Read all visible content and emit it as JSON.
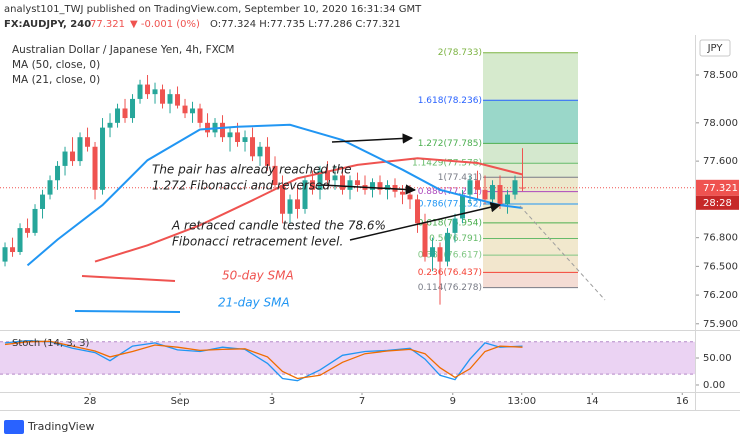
{
  "header": {
    "publisher": "analyst101_TWJ published on TradingView.com, September 10, 2020 16:31:34 GMT",
    "symbol": "FX:AUDJPY, 240",
    "last": "77.321",
    "change": "▼ -0.001 (0%)",
    "ohlc": "O:77.324 H:77.735 L:77.286 C:77.321"
  },
  "chart_data": [
    {
      "type": "candlestick",
      "title": "Australian Dollar / Japanese Yen, 4h, FXCM",
      "currency": "JPY",
      "up_color": "#26a69a",
      "down_color": "#ef5350",
      "open": [
        76.55,
        76.7,
        76.65,
        76.9,
        76.85,
        77.1,
        77.25,
        77.4,
        77.55,
        77.7,
        77.6,
        77.85,
        77.75,
        77.3,
        77.95,
        78.0,
        78.15,
        78.05,
        78.25,
        78.4,
        78.3,
        78.35,
        78.2,
        78.3,
        78.18,
        78.1,
        78.15,
        78.0,
        77.9,
        78.0,
        77.85,
        77.9,
        77.8,
        77.85,
        77.65,
        77.75,
        77.55,
        77.35,
        77.05,
        77.2,
        77.1,
        77.4,
        77.3,
        77.5,
        77.4,
        77.45,
        77.3,
        77.4,
        77.35,
        77.3,
        77.38,
        77.3,
        77.35,
        77.28,
        77.25,
        77.2,
        76.95,
        76.6,
        76.7,
        76.55,
        76.85,
        77.0,
        77.25,
        77.4,
        77.3,
        77.2,
        77.35,
        77.15,
        77.25,
        77.324
      ],
      "high": [
        76.75,
        76.8,
        76.95,
        77.0,
        77.15,
        77.3,
        77.45,
        77.6,
        77.75,
        77.85,
        77.9,
        77.95,
        77.8,
        78.05,
        78.1,
        78.2,
        78.25,
        78.3,
        78.45,
        78.5,
        78.42,
        78.4,
        78.35,
        78.38,
        78.25,
        78.22,
        78.2,
        78.1,
        78.05,
        78.08,
        77.95,
        78.0,
        77.92,
        77.95,
        77.8,
        77.85,
        77.65,
        77.45,
        77.25,
        77.35,
        77.45,
        77.5,
        77.55,
        77.6,
        77.55,
        77.5,
        77.45,
        77.48,
        77.45,
        77.42,
        77.45,
        77.4,
        77.42,
        77.35,
        77.35,
        77.25,
        77.05,
        76.8,
        76.75,
        76.9,
        77.05,
        77.3,
        77.45,
        77.5,
        77.45,
        77.4,
        77.45,
        77.3,
        77.45,
        77.735
      ],
      "low": [
        76.5,
        76.6,
        76.62,
        76.8,
        76.82,
        77.0,
        77.2,
        77.3,
        77.45,
        77.55,
        77.55,
        77.7,
        77.2,
        77.25,
        77.85,
        77.95,
        78.0,
        78.0,
        78.2,
        78.25,
        78.2,
        78.15,
        78.1,
        78.15,
        78.05,
        78.0,
        77.95,
        77.85,
        77.85,
        77.8,
        77.7,
        77.75,
        77.7,
        77.6,
        77.55,
        77.5,
        77.3,
        76.95,
        76.95,
        77.0,
        77.05,
        77.25,
        77.2,
        77.35,
        77.3,
        77.25,
        77.2,
        77.28,
        77.25,
        77.22,
        77.25,
        77.2,
        77.22,
        77.15,
        77.1,
        76.85,
        76.55,
        76.45,
        76.1,
        76.5,
        76.75,
        76.95,
        77.15,
        77.2,
        77.15,
        77.1,
        77.1,
        77.05,
        77.2,
        77.286
      ],
      "close": [
        76.7,
        76.65,
        76.9,
        76.85,
        77.1,
        77.25,
        77.4,
        77.55,
        77.7,
        77.6,
        77.85,
        77.75,
        77.3,
        77.95,
        78.0,
        78.15,
        78.05,
        78.25,
        78.4,
        78.3,
        78.35,
        78.2,
        78.3,
        78.18,
        78.1,
        78.15,
        78.0,
        77.9,
        78.0,
        77.85,
        77.9,
        77.8,
        77.85,
        77.65,
        77.75,
        77.55,
        77.35,
        77.05,
        77.2,
        77.1,
        77.4,
        77.3,
        77.5,
        77.4,
        77.45,
        77.3,
        77.4,
        77.35,
        77.3,
        77.38,
        77.3,
        77.35,
        77.28,
        77.25,
        77.2,
        76.95,
        76.6,
        76.7,
        76.55,
        76.85,
        77.0,
        77.25,
        77.4,
        77.3,
        77.2,
        77.35,
        77.15,
        77.25,
        77.4,
        77.321
      ],
      "series": [
        {
          "name": "MA (50, close, 0)",
          "color": "#ef5350",
          "x": [
            12,
            19,
            26,
            33,
            39,
            47,
            55,
            63,
            69
          ],
          "values": [
            76.55,
            76.72,
            76.93,
            77.19,
            77.42,
            77.56,
            77.63,
            77.58,
            77.46
          ]
        },
        {
          "name": "MA (21, close, 0)",
          "color": "#2196f3",
          "x": [
            3,
            7,
            13,
            19,
            26,
            31,
            38,
            45,
            53,
            58,
            66,
            69
          ],
          "values": [
            76.51,
            76.78,
            77.14,
            77.61,
            77.93,
            77.96,
            77.98,
            77.82,
            77.51,
            77.3,
            77.14,
            77.11
          ]
        }
      ],
      "xlim": [
        -0.67,
        92
      ],
      "xticks": [
        {
          "value": 11.33,
          "label": "28"
        },
        {
          "value": 23.33,
          "label": "Sep"
        },
        {
          "value": 35.6,
          "label": "3"
        },
        {
          "value": 47.6,
          "label": "7"
        },
        {
          "value": 59.7,
          "label": "9"
        },
        {
          "value": 68.9,
          "label": "13:00"
        },
        {
          "value": 78.3,
          "label": "14"
        },
        {
          "value": 90.3,
          "label": "16"
        }
      ],
      "ylim": [
        75.835,
        78.918
      ],
      "yticks": [
        {
          "value": 78.5,
          "label": "78.500"
        },
        {
          "value": 78.0,
          "label": "78.000"
        },
        {
          "value": 77.6,
          "label": "77.600"
        },
        {
          "value": 76.8,
          "label": "76.800"
        },
        {
          "value": 76.5,
          "label": "76.500"
        },
        {
          "value": 76.2,
          "label": "76.200"
        },
        {
          "value": 75.9,
          "label": "75.900"
        }
      ],
      "grid": false,
      "last_price": {
        "value": 77.321,
        "label": "77.321"
      },
      "countdown": "28:28",
      "fib_levels": [
        {
          "label": "2(78.733)",
          "price": 78.733,
          "color": "#7cb342",
          "fill": "#d2e8c8"
        },
        {
          "label": "1.618(78.236)",
          "price": 78.236,
          "color": "#2962ff",
          "fill": "#8fd3c3"
        },
        {
          "label": "1.272(77.785)",
          "price": 77.785,
          "color": "#4caf50",
          "fill": "#cfe6c9"
        },
        {
          "label": "1.1429(77.578)",
          "price": 77.578,
          "color": "#66bb6a",
          "fill": "#dde9cc"
        },
        {
          "label": "1(77.431)",
          "price": 77.431,
          "color": "#787b86",
          "fill": "#ebe6c6"
        },
        {
          "label": "0.886(77.281)",
          "price": 77.281,
          "color": "#ab47bc",
          "fill": "#ebe6c6"
        },
        {
          "label": "0.786(77.152)",
          "price": 77.152,
          "color": "#2196f3",
          "fill": "#efe8c8"
        },
        {
          "label": "0.618(76.954)",
          "price": 76.954,
          "color": "#4caf50",
          "fill": "#efe8c8"
        },
        {
          "label": "0.5(76.791)",
          "price": 76.791,
          "color": "#66bb6a",
          "fill": "#efe6c8"
        },
        {
          "label": "0.382(76.617)",
          "price": 76.617,
          "color": "#81c784",
          "fill": "#f1e3c8"
        },
        {
          "label": "0.236(76.437)",
          "price": 76.437,
          "color": "#f44336",
          "fill": "#f3d8cf"
        },
        {
          "label": "0.114(76.278)",
          "price": 76.278,
          "color": "#787b86"
        }
      ],
      "annotations": [
        {
          "lines": [
            "The pair has already reached the",
            "1.272 Fibonacci and reversed"
          ]
        },
        {
          "lines": [
            "A retraced candle tested the 78.6%",
            "Fibonacci retracement level."
          ]
        },
        {
          "lines": [
            "50-day SMA"
          ]
        },
        {
          "lines": [
            "21-day SMA"
          ]
        }
      ]
    },
    {
      "type": "line",
      "title": "Stoch (14, 3, 3)",
      "series": [
        {
          "name": "%K",
          "color": "#2196f3",
          "x": [
            0,
            3,
            6,
            9,
            12,
            14,
            17,
            20,
            23,
            26,
            29,
            32,
            35,
            37,
            39,
            42,
            45,
            48,
            51,
            54,
            56,
            58,
            60,
            62,
            64,
            66,
            69
          ],
          "values": [
            78,
            82,
            80,
            68,
            60,
            45,
            72,
            78,
            65,
            62,
            70,
            66,
            40,
            12,
            8,
            28,
            55,
            62,
            64,
            68,
            48,
            18,
            10,
            48,
            78,
            70,
            72
          ]
        },
        {
          "name": "%D",
          "color": "#ef6c00",
          "x": [
            0,
            3,
            6,
            9,
            12,
            14,
            17,
            20,
            23,
            26,
            29,
            32,
            35,
            37,
            39,
            42,
            45,
            48,
            51,
            54,
            56,
            58,
            60,
            62,
            64,
            66,
            69
          ],
          "values": [
            75,
            80,
            81,
            72,
            63,
            52,
            62,
            74,
            70,
            64,
            66,
            67,
            52,
            25,
            12,
            18,
            42,
            58,
            63,
            66,
            58,
            32,
            14,
            30,
            62,
            72,
            70
          ]
        }
      ],
      "band": [
        20,
        80
      ],
      "band_color": "#e6c8f0",
      "xlim": [
        -0.67,
        92
      ],
      "ylim": [
        -13,
        100
      ],
      "yticks": [
        {
          "value": 50,
          "label": "50.00"
        },
        {
          "value": 0,
          "label": "0.00"
        }
      ]
    }
  ],
  "footer": {
    "brand": "TradingView"
  }
}
